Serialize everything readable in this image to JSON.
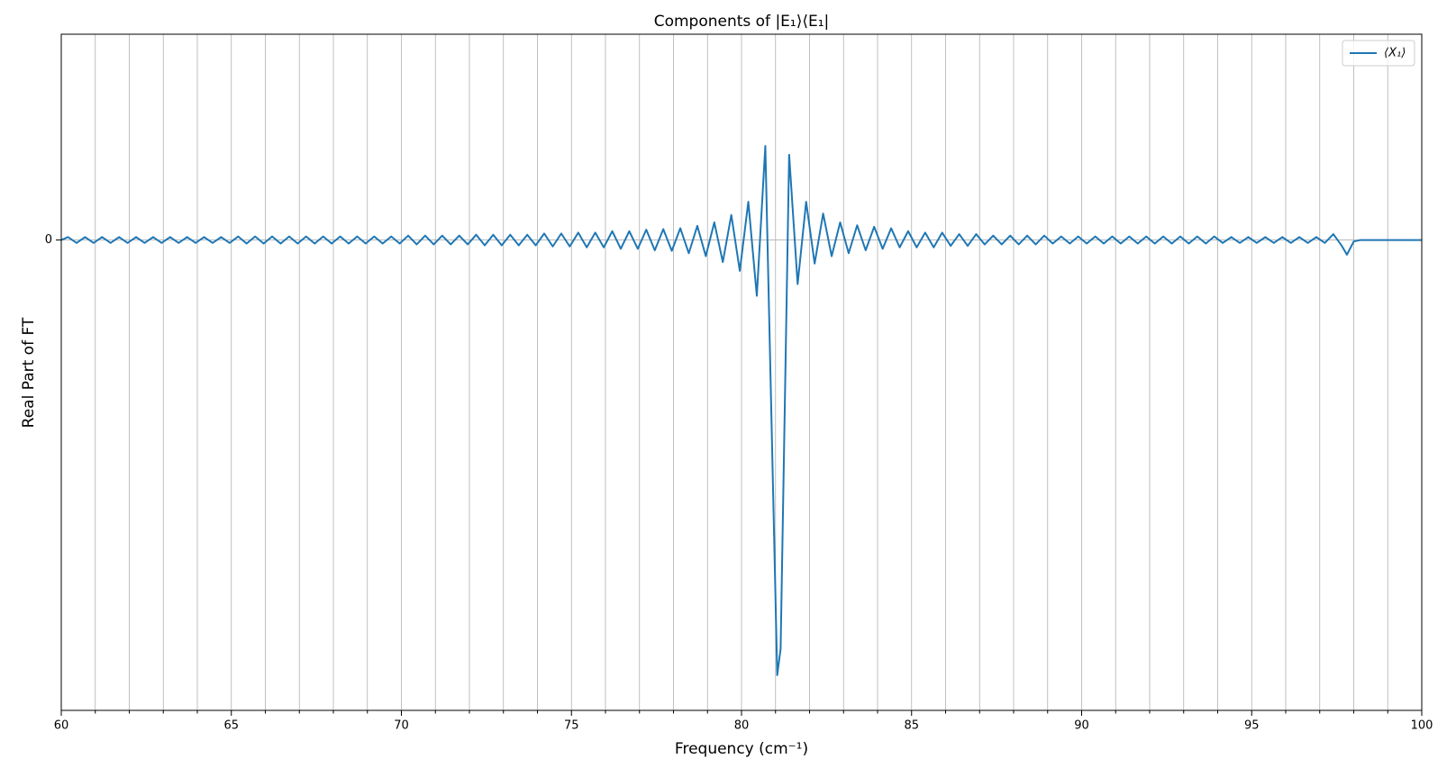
{
  "chart_data": {
    "type": "line",
    "title": "Components of |E₁⟩⟨E₁|",
    "x_label": "Frequency (cm⁻¹)",
    "y_label": "Real Part of FT",
    "xlim": [
      60,
      100
    ],
    "xticks": [
      60,
      65,
      70,
      75,
      80,
      85,
      90,
      95,
      100
    ],
    "xminorticks": [
      61,
      62,
      63,
      64,
      66,
      67,
      68,
      69,
      71,
      72,
      73,
      74,
      76,
      77,
      78,
      79,
      81,
      82,
      83,
      84,
      86,
      87,
      88,
      89,
      91,
      92,
      93,
      94,
      96,
      97,
      98,
      99
    ],
    "ylim": [
      -1.6,
      0.7
    ],
    "yticks": [
      0
    ],
    "grid": true,
    "legend_position": "upper right",
    "series": [
      {
        "name": "⟨X₁⟩",
        "color": "#1f77b4",
        "x": [
          60,
          60.2,
          60.45,
          60.7,
          60.95,
          61.2,
          61.45,
          61.7,
          61.95,
          62.2,
          62.45,
          62.7,
          62.95,
          63.2,
          63.45,
          63.7,
          63.95,
          64.2,
          64.45,
          64.7,
          64.95,
          65.2,
          65.45,
          65.7,
          65.95,
          66.2,
          66.45,
          66.7,
          66.95,
          67.2,
          67.45,
          67.7,
          67.95,
          68.2,
          68.45,
          68.7,
          68.95,
          69.2,
          69.45,
          69.7,
          69.95,
          70.2,
          70.45,
          70.7,
          70.95,
          71.2,
          71.45,
          71.7,
          71.95,
          72.2,
          72.45,
          72.7,
          72.95,
          73.2,
          73.45,
          73.7,
          73.95,
          74.2,
          74.45,
          74.7,
          74.95,
          75.2,
          75.45,
          75.7,
          75.95,
          76.2,
          76.45,
          76.7,
          76.95,
          77.2,
          77.45,
          77.7,
          77.95,
          78.2,
          78.45,
          78.7,
          78.95,
          79.2,
          79.45,
          79.7,
          79.95,
          80.2,
          80.45,
          80.7,
          81.05,
          81.15,
          81.4,
          81.65,
          81.9,
          82.15,
          82.4,
          82.65,
          82.9,
          83.15,
          83.4,
          83.65,
          83.9,
          84.15,
          84.4,
          84.65,
          84.9,
          85.15,
          85.4,
          85.65,
          85.9,
          86.15,
          86.4,
          86.65,
          86.9,
          87.15,
          87.4,
          87.65,
          87.9,
          88.15,
          88.4,
          88.65,
          88.9,
          89.15,
          89.4,
          89.65,
          89.9,
          90.15,
          90.4,
          90.65,
          90.9,
          91.15,
          91.4,
          91.65,
          91.9,
          92.15,
          92.4,
          92.65,
          92.9,
          93.15,
          93.4,
          93.65,
          93.9,
          94.15,
          94.4,
          94.65,
          94.9,
          95.15,
          95.4,
          95.65,
          95.9,
          96.15,
          96.4,
          96.65,
          96.9,
          97.15,
          97.4,
          97.65,
          97.8,
          98,
          98.2,
          99,
          100
        ],
        "values": [
          0,
          0.01,
          -0.01,
          0.01,
          -0.01,
          0.01,
          -0.01,
          0.01,
          -0.01,
          0.01,
          -0.01,
          0.01,
          -0.01,
          0.01,
          -0.01,
          0.01,
          -0.01,
          0.01,
          -0.01,
          0.01,
          -0.01,
          0.012,
          -0.012,
          0.012,
          -0.012,
          0.012,
          -0.012,
          0.012,
          -0.012,
          0.012,
          -0.012,
          0.012,
          -0.012,
          0.012,
          -0.012,
          0.012,
          -0.012,
          0.012,
          -0.012,
          0.012,
          -0.012,
          0.015,
          -0.015,
          0.015,
          -0.015,
          0.015,
          -0.015,
          0.015,
          -0.015,
          0.018,
          -0.018,
          0.018,
          -0.018,
          0.018,
          -0.018,
          0.018,
          -0.018,
          0.022,
          -0.022,
          0.022,
          -0.022,
          0.025,
          -0.025,
          0.025,
          -0.025,
          0.03,
          -0.03,
          0.03,
          -0.03,
          0.035,
          -0.035,
          0.037,
          -0.037,
          0.04,
          -0.045,
          0.048,
          -0.055,
          0.06,
          -0.075,
          0.085,
          -0.105,
          0.13,
          -0.19,
          0.32,
          -1.48,
          -1.39,
          0.29,
          -0.15,
          0.13,
          -0.08,
          0.09,
          -0.055,
          0.06,
          -0.045,
          0.05,
          -0.035,
          0.045,
          -0.03,
          0.04,
          -0.025,
          0.03,
          -0.025,
          0.025,
          -0.025,
          0.025,
          -0.02,
          0.02,
          -0.02,
          0.02,
          -0.015,
          0.015,
          -0.015,
          0.015,
          -0.015,
          0.015,
          -0.015,
          0.015,
          -0.012,
          0.012,
          -0.012,
          0.012,
          -0.012,
          0.012,
          -0.012,
          0.012,
          -0.012,
          0.012,
          -0.012,
          0.012,
          -0.012,
          0.012,
          -0.012,
          0.012,
          -0.012,
          0.012,
          -0.012,
          0.012,
          -0.01,
          0.01,
          -0.01,
          0.01,
          -0.01,
          0.01,
          -0.01,
          0.01,
          -0.01,
          0.01,
          -0.01,
          0.01,
          -0.01,
          0.02,
          -0.02,
          -0.05,
          -0.005,
          0,
          0,
          0
        ]
      }
    ]
  }
}
